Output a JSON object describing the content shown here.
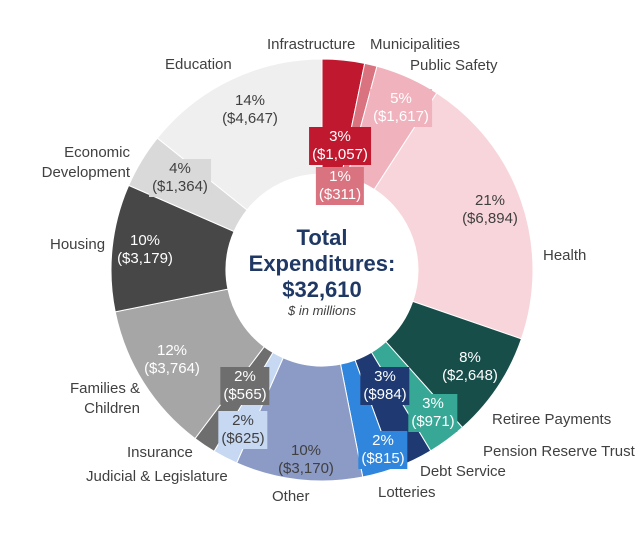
{
  "chart_data": {
    "type": "pie",
    "variant": "donut",
    "title": "Total Expenditures:",
    "total": "$32,610",
    "unit_note": "$ in millions",
    "slices": [
      {
        "name": "Infrastructure",
        "value": 1057,
        "pct": "3%",
        "value_label": "($1,057)",
        "color": "#c0192f",
        "text": "#ffffff"
      },
      {
        "name": "Municipalities",
        "value": 311,
        "pct": "1%",
        "value_label": "($311)",
        "color": "#d9737f",
        "text": "#ffffff"
      },
      {
        "name": "Public Safety",
        "value": 1617,
        "pct": "5%",
        "value_label": "($1,617)",
        "color": "#f0b2bc",
        "text": "#ffffff"
      },
      {
        "name": "Health",
        "value": 6894,
        "pct": "21%",
        "value_label": "($6,894)",
        "color": "#f8d5db",
        "text": "#404040"
      },
      {
        "name": "Retiree Payments",
        "value": 2648,
        "pct": "8%",
        "value_label": "($2,648)",
        "color": "#184e4a",
        "text": "#ffffff"
      },
      {
        "name": "Pension Reserve Trust",
        "value": 971,
        "pct": "3%",
        "value_label": "($971)",
        "color": "#38a896",
        "text": "#ffffff"
      },
      {
        "name": "Debt Service",
        "value": 984,
        "pct": "3%",
        "value_label": "($984)",
        "color": "#1f3a72",
        "text": "#ffffff"
      },
      {
        "name": "Lotteries",
        "value": 815,
        "pct": "2%",
        "value_label": "($815)",
        "color": "#2f86dc",
        "text": "#ffffff"
      },
      {
        "name": "Other",
        "value": 3170,
        "pct": "10%",
        "value_label": "($3,170)",
        "color": "#8c9ac6",
        "text": "#404040"
      },
      {
        "name": "Judicial & Legislature",
        "value": 625,
        "pct": "2%",
        "value_label": "($625)",
        "color": "#c6d8f2",
        "text": "#404040"
      },
      {
        "name": "Insurance",
        "value": 565,
        "pct": "2%",
        "value_label": "($565)",
        "color": "#6e6e6e",
        "text": "#ffffff"
      },
      {
        "name": "Families & Children",
        "value": 3764,
        "pct": "12%",
        "value_label": "($3,764)",
        "color": "#a6a6a6",
        "text": "#ffffff"
      },
      {
        "name": "Housing",
        "value": 3179,
        "pct": "10%",
        "value_label": "($3,179)",
        "color": "#474747",
        "text": "#ffffff"
      },
      {
        "name": "Economic Development",
        "value": 1364,
        "pct": "4%",
        "value_label": "($1,364)",
        "color": "#d9d9d9",
        "text": "#404040"
      },
      {
        "name": "Education",
        "value": 4647,
        "pct": "14%",
        "value_label": "($4,647)",
        "color": "#efefef",
        "text": "#404040"
      }
    ],
    "category_labels": {
      "infrastructure": "Infrastructure",
      "municipalities": "Municipalities",
      "public_safety": "Public Safety",
      "health": "Health",
      "retiree_1": "Retiree Payments",
      "pension": "Pension Reserve Trust",
      "debt": "Debt Service",
      "lotteries": "Lotteries",
      "other": "Other",
      "judicial": "Judicial & Legislature",
      "insurance": "Insurance",
      "families_1": "Families &",
      "families_2": "Children",
      "housing": "Housing",
      "econ_1": "Economic",
      "econ_2": "Development",
      "education": "Education"
    }
  }
}
